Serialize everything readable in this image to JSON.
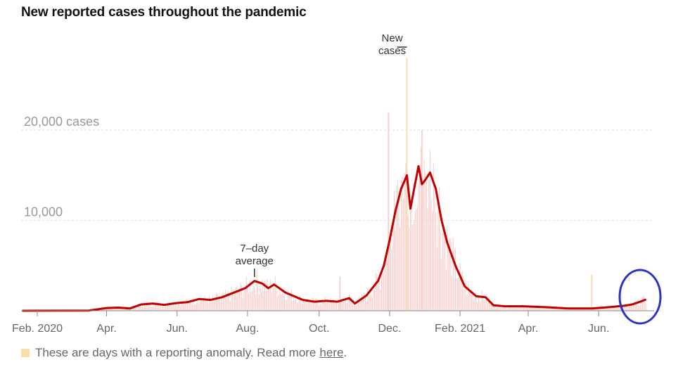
{
  "chart_data": {
    "type": "bar",
    "title": "New reported cases throughout the pandemic",
    "xlabel": "",
    "ylabel": "",
    "y_ticks": [
      {
        "value": 20000,
        "label": "20,000 cases"
      },
      {
        "value": 10000,
        "label": "10,000"
      }
    ],
    "ylim": [
      0,
      20000
    ],
    "x_ticks": [
      {
        "day": 0,
        "label": "Feb. 2020"
      },
      {
        "day": 60,
        "label": "Apr."
      },
      {
        "day": 121,
        "label": "Jun."
      },
      {
        "day": 182,
        "label": "Aug."
      },
      {
        "day": 244,
        "label": "Oct."
      },
      {
        "day": 305,
        "label": "Dec."
      },
      {
        "day": 366,
        "label": "Feb. 2021"
      },
      {
        "day": 425,
        "label": "Apr."
      },
      {
        "day": 486,
        "label": "Jun."
      }
    ],
    "x_range": [
      -14,
      534
    ],
    "series": [
      {
        "name": "7-day average",
        "color": "#c00000",
        "points": [
          [
            -13,
            0
          ],
          [
            45,
            20
          ],
          [
            60,
            300
          ],
          [
            70,
            350
          ],
          [
            80,
            250
          ],
          [
            90,
            700
          ],
          [
            100,
            800
          ],
          [
            110,
            650
          ],
          [
            120,
            850
          ],
          [
            130,
            950
          ],
          [
            140,
            1300
          ],
          [
            150,
            1200
          ],
          [
            160,
            1500
          ],
          [
            170,
            2000
          ],
          [
            180,
            2500
          ],
          [
            188,
            3300
          ],
          [
            195,
            3000
          ],
          [
            200,
            2500
          ],
          [
            205,
            2900
          ],
          [
            215,
            2000
          ],
          [
            230,
            1200
          ],
          [
            240,
            1000
          ],
          [
            250,
            1100
          ],
          [
            260,
            1000
          ],
          [
            270,
            1400
          ],
          [
            275,
            800
          ],
          [
            285,
            1700
          ],
          [
            295,
            3300
          ],
          [
            300,
            5000
          ],
          [
            305,
            7800
          ],
          [
            310,
            11000
          ],
          [
            315,
            13500
          ],
          [
            320,
            15000
          ],
          [
            323,
            11300
          ],
          [
            327,
            14000
          ],
          [
            330,
            16000
          ],
          [
            333,
            14000
          ],
          [
            336,
            14500
          ],
          [
            340,
            15300
          ],
          [
            345,
            13500
          ],
          [
            350,
            10000
          ],
          [
            355,
            7500
          ],
          [
            362,
            5000
          ],
          [
            370,
            2700
          ],
          [
            380,
            1600
          ],
          [
            388,
            1500
          ],
          [
            395,
            600
          ],
          [
            405,
            500
          ],
          [
            420,
            500
          ],
          [
            440,
            400
          ],
          [
            460,
            250
          ],
          [
            480,
            250
          ],
          [
            495,
            400
          ],
          [
            508,
            550
          ],
          [
            515,
            700
          ],
          [
            522,
            1000
          ],
          [
            527,
            1250
          ]
        ]
      },
      {
        "name": "New cases",
        "color": "#f6cfcc",
        "points": [
          [
            -13,
            0
          ],
          [
            45,
            20
          ],
          [
            60,
            300
          ],
          [
            70,
            350
          ],
          [
            80,
            250
          ],
          [
            90,
            700
          ],
          [
            100,
            800
          ],
          [
            110,
            650
          ],
          [
            120,
            850
          ],
          [
            130,
            950
          ],
          [
            140,
            1300
          ],
          [
            150,
            1200
          ],
          [
            160,
            1500
          ],
          [
            170,
            2000
          ],
          [
            180,
            2500
          ],
          [
            188,
            3300
          ],
          [
            195,
            3000
          ],
          [
            200,
            2500
          ],
          [
            205,
            2900
          ],
          [
            215,
            2000
          ],
          [
            230,
            1200
          ],
          [
            240,
            1000
          ],
          [
            250,
            1100
          ],
          [
            260,
            1000
          ],
          [
            270,
            1400
          ],
          [
            275,
            800
          ],
          [
            285,
            1700
          ],
          [
            295,
            3300
          ],
          [
            300,
            5000
          ],
          [
            305,
            7800
          ],
          [
            310,
            11000
          ],
          [
            315,
            13500
          ],
          [
            320,
            15000
          ],
          [
            323,
            11300
          ],
          [
            327,
            14000
          ],
          [
            330,
            16000
          ],
          [
            333,
            14000
          ],
          [
            336,
            14500
          ],
          [
            340,
            15300
          ],
          [
            345,
            13500
          ],
          [
            350,
            10000
          ],
          [
            355,
            7500
          ],
          [
            362,
            5000
          ],
          [
            370,
            2700
          ],
          [
            380,
            1600
          ],
          [
            388,
            1500
          ],
          [
            395,
            600
          ],
          [
            405,
            500
          ],
          [
            420,
            500
          ],
          [
            440,
            400
          ],
          [
            460,
            250
          ],
          [
            480,
            250
          ],
          [
            495,
            400
          ],
          [
            508,
            550
          ],
          [
            515,
            700
          ],
          [
            522,
            1000
          ],
          [
            527,
            1250
          ]
        ],
        "spikes": [
          {
            "day": 304,
            "value": 22000
          },
          {
            "day": 320,
            "value": 28000
          },
          {
            "day": 333,
            "value": 20000
          },
          {
            "day": 262,
            "value": 3800
          },
          {
            "day": 480,
            "value": 4000
          }
        ]
      }
    ],
    "anomaly_days": [
      {
        "day": 480,
        "value": 4000
      },
      {
        "day": 320,
        "value": 28000
      }
    ],
    "annotations": [
      {
        "id": "avg",
        "lines": [
          "7–day",
          "average"
        ],
        "day": 188
      },
      {
        "id": "new",
        "lines": [
          "New",
          "cases"
        ],
        "day": 320
      }
    ],
    "colors": {
      "line": "#c00000",
      "bars": "#f6cfcc",
      "anomaly": "#f9dfaa",
      "grid": "#dddddd",
      "baseline": "#888888",
      "highlight_circle": "#2b34c0"
    }
  },
  "footer": {
    "text": "These are days with a reporting anomaly. Read more",
    "link": "here",
    "period": "."
  }
}
